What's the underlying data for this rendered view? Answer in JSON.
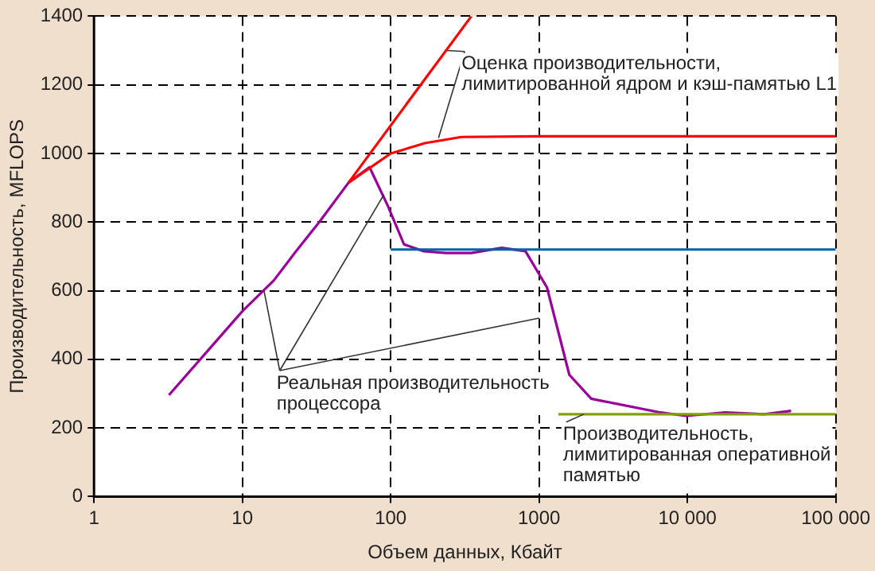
{
  "chart_data": {
    "type": "line",
    "xlabel": "Объем данных, Кбайт",
    "ylabel": "Производительность, MFLOPS",
    "log": "x",
    "grid": true,
    "legend": false,
    "marker": "none",
    "line_style": "solid",
    "xlim": [
      1,
      100000
    ],
    "xticks": [
      1,
      10,
      100,
      1000,
      {
        "value": 10000,
        "label": "10 000"
      },
      {
        "value": 100000,
        "label": "100 000"
      }
    ],
    "ylim": [
      0,
      1400
    ],
    "yticks": [
      0,
      200,
      400,
      600,
      800,
      1000,
      1200,
      1400
    ],
    "series": [
      {
        "color": "#ff0000",
        "x": [
          52,
          350
        ],
        "values": [
          915,
          1400
        ]
      },
      {
        "color": "#ff0000",
        "x": [
          52,
          100,
          170,
          300,
          1000,
          100000
        ],
        "values": [
          915,
          1000,
          1030,
          1048,
          1050,
          1050
        ]
      },
      {
        "color": "#0060a8",
        "x": [
          100,
          100000
        ],
        "values": [
          720,
          720
        ]
      },
      {
        "color": "#80a000",
        "x": [
          1350,
          100000
        ],
        "values": [
          240,
          240
        ]
      },
      {
        "color": "#990099",
        "x": [
          3.2,
          10,
          16.3,
          23,
          33,
          52,
          72,
          95,
          123,
          167,
          235,
          350,
          560,
          810,
          1130,
          1600,
          2250,
          6600,
          9800,
          18000,
          33000,
          50000
        ],
        "values": [
          296,
          540,
          630,
          715,
          800,
          915,
          960,
          850,
          735,
          715,
          710,
          710,
          725,
          715,
          610,
          355,
          285,
          245,
          235,
          245,
          240,
          250
        ]
      }
    ],
    "annotations": [
      {
        "text": "Оценка производительности,\nлимитированной ядром и кэш-памятью L1",
        "x": 240,
        "y": 1300
      },
      {
        "text": "Реальная производительность\nпроцессора",
        "x": 90,
        "y": 880
      },
      {
        "text": "Производительность,\nлимитированная оперативной\nпамятью",
        "x": 2000,
        "y": 240
      }
    ]
  }
}
